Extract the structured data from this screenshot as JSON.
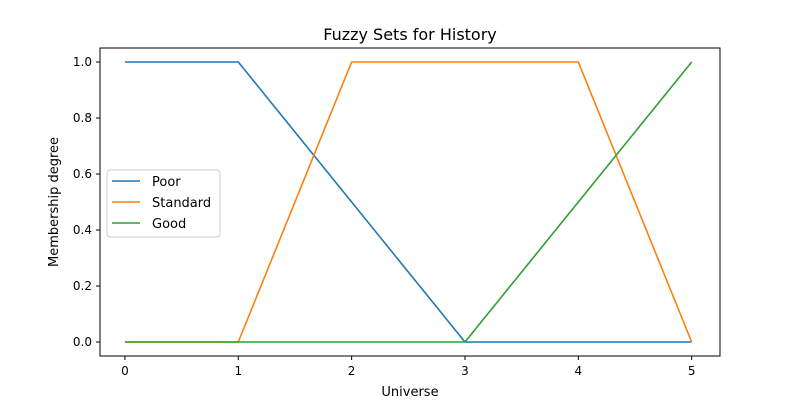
{
  "chart_data": {
    "type": "line",
    "title": "Fuzzy Sets for History",
    "xlabel": "Universe",
    "ylabel": "Membership degree",
    "xlim": [
      -0.22,
      5.25
    ],
    "ylim": [
      -0.05,
      1.05
    ],
    "xticks": [
      0,
      1,
      2,
      3,
      4,
      5
    ],
    "yticks": [
      0.0,
      0.2,
      0.4,
      0.6,
      0.8,
      1.0
    ],
    "xtick_labels": [
      "0",
      "1",
      "2",
      "3",
      "4",
      "5"
    ],
    "ytick_labels": [
      "0.0",
      "0.2",
      "0.4",
      "0.6",
      "0.8",
      "1.0"
    ],
    "grid": false,
    "legend_position": "center-left",
    "series": [
      {
        "name": "Poor",
        "color": "#1f77b4",
        "x": [
          0,
          1,
          3,
          5
        ],
        "y": [
          1,
          1,
          0,
          0
        ]
      },
      {
        "name": "Standard",
        "color": "#ff7f0e",
        "x": [
          0,
          1,
          2,
          4,
          5
        ],
        "y": [
          0,
          0,
          1,
          1,
          0
        ]
      },
      {
        "name": "Good",
        "color": "#2ca02c",
        "x": [
          0,
          3,
          5
        ],
        "y": [
          0,
          0,
          1
        ]
      }
    ]
  }
}
